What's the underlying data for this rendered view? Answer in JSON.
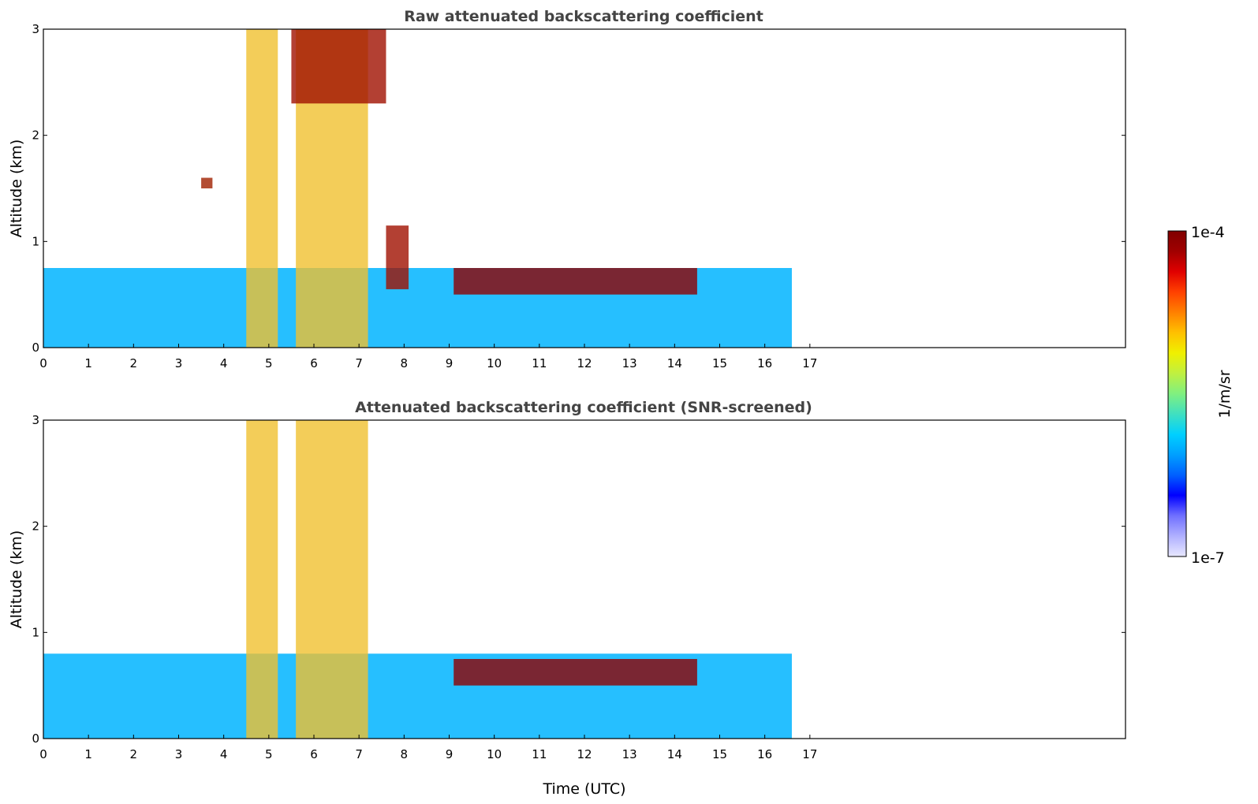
{
  "chart_data": [
    {
      "type": "heatmap",
      "title": "Raw attenuated backscattering coefficient",
      "xlabel": "",
      "ylabel": "Altitude (km)",
      "xlim": [
        0,
        24
      ],
      "ylim": [
        0,
        3
      ],
      "x_ticks": [
        "0",
        "1",
        "2",
        "3",
        "4",
        "5",
        "6",
        "7",
        "8",
        "9",
        "10",
        "11",
        "12",
        "13",
        "14",
        "15",
        "16",
        "17"
      ],
      "y_ticks": [
        "0",
        "1",
        "2",
        "3"
      ],
      "data_end_time": 16.6,
      "features": [
        {
          "name": "boundary-layer-aerosol",
          "x": [
            0,
            16.6
          ],
          "y": [
            0,
            0.75
          ]
        },
        {
          "name": "precipitation-fallstreak",
          "x": [
            4.5,
            5.2
          ],
          "y": [
            0,
            3
          ]
        },
        {
          "name": "precipitation-fallstreak",
          "x": [
            5.6,
            7.2
          ],
          "y": [
            0,
            3
          ]
        },
        {
          "name": "cloud-layer-upper",
          "x": [
            5.5,
            7.6
          ],
          "y": [
            2.3,
            3
          ]
        },
        {
          "name": "cloud-base-rising",
          "x": [
            7.6,
            8.1
          ],
          "y": [
            0.55,
            1.15
          ]
        },
        {
          "name": "stratocumulus-top",
          "x": [
            9.1,
            14.5
          ],
          "y": [
            0.5,
            0.75
          ]
        },
        {
          "name": "cloud-patch",
          "x": [
            3.5,
            3.75
          ],
          "y": [
            1.5,
            1.6
          ]
        }
      ]
    },
    {
      "type": "heatmap",
      "title": "Attenuated backscattering coefficient (SNR-screened)",
      "xlabel": "Time (UTC)",
      "ylabel": "Altitude (km)",
      "xlim": [
        0,
        24
      ],
      "ylim": [
        0,
        3
      ],
      "x_ticks": [
        "0",
        "1",
        "2",
        "3",
        "4",
        "5",
        "6",
        "7",
        "8",
        "9",
        "10",
        "11",
        "12",
        "13",
        "14",
        "15",
        "16",
        "17"
      ],
      "y_ticks": [
        "0",
        "1",
        "2",
        "3"
      ],
      "data_end_time": 16.6,
      "features": [
        {
          "name": "boundary-layer-aerosol",
          "x": [
            0,
            16.6
          ],
          "y": [
            0,
            0.8
          ]
        },
        {
          "name": "precipitation-fallstreak",
          "x": [
            4.5,
            5.2
          ],
          "y": [
            0,
            3
          ]
        },
        {
          "name": "precipitation-fallstreak",
          "x": [
            5.6,
            7.2
          ],
          "y": [
            0,
            3
          ]
        },
        {
          "name": "stratocumulus-top",
          "x": [
            9.1,
            14.5
          ],
          "y": [
            0.5,
            0.75
          ]
        }
      ]
    }
  ],
  "colorbar": {
    "label": "1/m/sr",
    "max_label": "1e-4",
    "min_label": "1e-7",
    "scale": "log",
    "colormap": [
      "#e8e8ff",
      "#b0b0ff",
      "#7070ff",
      "#0000ff",
      "#0060ff",
      "#00a0ff",
      "#00d0ff",
      "#40e0c0",
      "#80f080",
      "#c0f040",
      "#f0f000",
      "#ffc000",
      "#ff8000",
      "#ff4000",
      "#e00000",
      "#a00000",
      "#800000"
    ]
  }
}
